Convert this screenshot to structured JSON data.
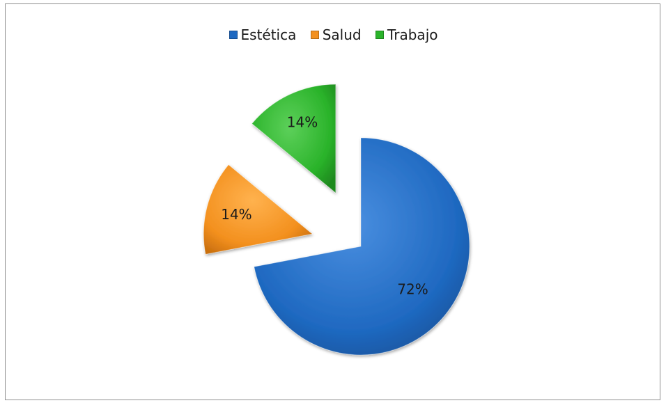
{
  "chart_data": {
    "type": "pie",
    "exploded": true,
    "legend_position": "top",
    "slices": [
      {
        "name": "Estética",
        "value": 72,
        "label": "72%",
        "color": "#1f69c1"
      },
      {
        "name": "Salud",
        "value": 14,
        "label": "14%",
        "color": "#f3901e"
      },
      {
        "name": "Trabajo",
        "value": 14,
        "label": "14%",
        "color": "#2ab32a"
      }
    ]
  }
}
